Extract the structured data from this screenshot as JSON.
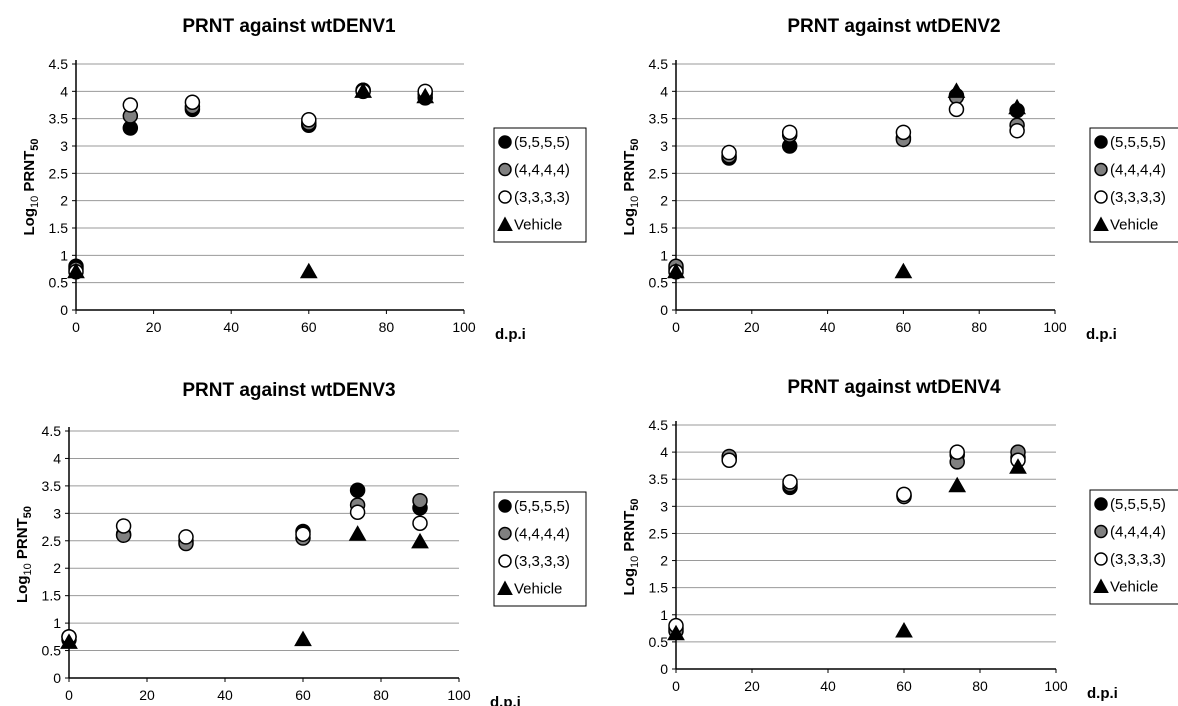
{
  "chart_data": [
    {
      "type": "scatter",
      "title": "PRNT against wtDENV1",
      "xlabel": "d.p.i",
      "ylabel_prefix": "Log",
      "ylabel_sub1": "10",
      "ylabel_mid": " PRNT",
      "ylabel_sub2": "50",
      "xlim": [
        0,
        100
      ],
      "ylim": [
        0,
        4.5
      ],
      "xticks": [
        "0",
        "20",
        "40",
        "60",
        "80",
        "100"
      ],
      "yticks": [
        "0",
        "0.5",
        "1",
        "1.5",
        "2",
        "2.5",
        "3",
        "3.5",
        "4",
        "4.5"
      ],
      "grid": "horizontal",
      "legend_position": "right",
      "series": [
        {
          "name": "(5,5,5,5)",
          "marker": "circle",
          "fill": "#000000",
          "points": [
            [
              0,
              0.8
            ],
            [
              14,
              3.33
            ],
            [
              30,
              3.67
            ],
            [
              60,
              3.38
            ],
            [
              74,
              4.02
            ],
            [
              90,
              3.88
            ]
          ]
        },
        {
          "name": "(4,4,4,4)",
          "marker": "circle",
          "fill": "#808080",
          "points": [
            [
              0,
              0.75
            ],
            [
              14,
              3.55
            ],
            [
              30,
              3.72
            ],
            [
              60,
              3.42
            ],
            [
              74,
              4.02
            ],
            [
              90,
              3.95
            ]
          ]
        },
        {
          "name": "(3,3,3,3)",
          "marker": "circle",
          "fill": "#ffffff",
          "points": [
            [
              0,
              0.7
            ],
            [
              14,
              3.75
            ],
            [
              30,
              3.8
            ],
            [
              60,
              3.48
            ],
            [
              74,
              4.0
            ],
            [
              90,
              4.0
            ]
          ]
        },
        {
          "name": "Vehicle",
          "marker": "triangle",
          "fill": "#000000",
          "points": [
            [
              0,
              0.7
            ],
            [
              60,
              0.7
            ],
            [
              74,
              4.0
            ],
            [
              90,
              3.9
            ]
          ]
        }
      ]
    },
    {
      "type": "scatter",
      "title": "PRNT against wtDENV2",
      "xlabel": "d.p.i",
      "ylabel_prefix": "Log",
      "ylabel_sub1": "10",
      "ylabel_mid": " PRNT",
      "ylabel_sub2": "50",
      "xlim": [
        0,
        100
      ],
      "ylim": [
        0,
        4.5
      ],
      "xticks": [
        "0",
        "20",
        "40",
        "60",
        "80",
        "100"
      ],
      "yticks": [
        "0",
        "0.5",
        "1",
        "1.5",
        "2",
        "2.5",
        "3",
        "3.5",
        "4",
        "4.5"
      ],
      "grid": "horizontal",
      "legend_position": "right",
      "series": [
        {
          "name": "(5,5,5,5)",
          "marker": "circle",
          "fill": "#000000",
          "points": [
            [
              0,
              0.75
            ],
            [
              14,
              2.78
            ],
            [
              30,
              3.0
            ],
            [
              60,
              3.15
            ],
            [
              74,
              3.92
            ],
            [
              90,
              3.65
            ]
          ]
        },
        {
          "name": "(4,4,4,4)",
          "marker": "circle",
          "fill": "#808080",
          "points": [
            [
              0,
              0.8
            ],
            [
              14,
              2.82
            ],
            [
              30,
              3.2
            ],
            [
              60,
              3.12
            ],
            [
              74,
              3.9
            ],
            [
              90,
              3.38
            ]
          ]
        },
        {
          "name": "(3,3,3,3)",
          "marker": "circle",
          "fill": "#ffffff",
          "points": [
            [
              0,
              0.7
            ],
            [
              14,
              2.88
            ],
            [
              30,
              3.25
            ],
            [
              60,
              3.25
            ],
            [
              74,
              3.67
            ],
            [
              90,
              3.28
            ]
          ]
        },
        {
          "name": "Vehicle",
          "marker": "triangle",
          "fill": "#000000",
          "points": [
            [
              0,
              0.7
            ],
            [
              60,
              0.7
            ],
            [
              74,
              4.0
            ],
            [
              90,
              3.7
            ]
          ]
        }
      ]
    },
    {
      "type": "scatter",
      "title": "PRNT against wtDENV3",
      "xlabel": "d.p.i",
      "ylabel_prefix": "Log",
      "ylabel_sub1": "10",
      "ylabel_mid": " PRNT",
      "ylabel_sub2": "50",
      "xlim": [
        0,
        100
      ],
      "ylim": [
        0,
        4.5
      ],
      "xticks": [
        "0",
        "20",
        "40",
        "60",
        "80",
        "100"
      ],
      "yticks": [
        "0",
        "0.5",
        "1",
        "1.5",
        "2",
        "2.5",
        "3",
        "3.5",
        "4",
        "4.5"
      ],
      "grid": "horizontal",
      "legend_position": "right",
      "series": [
        {
          "name": "(5,5,5,5)",
          "marker": "circle",
          "fill": "#000000",
          "points": [
            [
              0,
              0.7
            ],
            [
              14,
              2.62
            ],
            [
              30,
              2.5
            ],
            [
              60,
              2.67
            ],
            [
              74,
              3.42
            ],
            [
              90,
              3.1
            ]
          ]
        },
        {
          "name": "(4,4,4,4)",
          "marker": "circle",
          "fill": "#808080",
          "points": [
            [
              0,
              0.75
            ],
            [
              14,
              2.6
            ],
            [
              30,
              2.45
            ],
            [
              60,
              2.55
            ],
            [
              74,
              3.15
            ],
            [
              90,
              3.23
            ]
          ]
        },
        {
          "name": "(3,3,3,3)",
          "marker": "circle",
          "fill": "#ffffff",
          "points": [
            [
              0,
              0.75
            ],
            [
              14,
              2.77
            ],
            [
              30,
              2.57
            ],
            [
              60,
              2.62
            ],
            [
              74,
              3.02
            ],
            [
              90,
              2.82
            ]
          ]
        },
        {
          "name": "Vehicle",
          "marker": "triangle",
          "fill": "#000000",
          "points": [
            [
              0,
              0.65
            ],
            [
              60,
              0.7
            ],
            [
              74,
              2.62
            ],
            [
              90,
              2.48
            ]
          ]
        }
      ]
    },
    {
      "type": "scatter",
      "title": "PRNT against wtDENV4",
      "xlabel": "d.p.i",
      "ylabel_prefix": "Log",
      "ylabel_sub1": "10",
      "ylabel_mid": " PRNT",
      "ylabel_sub2": "50",
      "xlim": [
        0,
        100
      ],
      "ylim": [
        0,
        4.5
      ],
      "xticks": [
        "0",
        "20",
        "40",
        "60",
        "80",
        "100"
      ],
      "yticks": [
        "0",
        "0.5",
        "1",
        "1.5",
        "2",
        "2.5",
        "3",
        "3.5",
        "4",
        "4.5"
      ],
      "grid": "horizontal",
      "legend_position": "right",
      "series": [
        {
          "name": "(5,5,5,5)",
          "marker": "circle",
          "fill": "#000000",
          "points": [
            [
              0,
              0.75
            ],
            [
              14,
              3.88
            ],
            [
              30,
              3.35
            ],
            [
              60,
              3.2
            ],
            [
              74,
              3.95
            ],
            [
              90,
              3.9
            ]
          ]
        },
        {
          "name": "(4,4,4,4)",
          "marker": "circle",
          "fill": "#808080",
          "points": [
            [
              0,
              0.7
            ],
            [
              14,
              3.92
            ],
            [
              30,
              3.4
            ],
            [
              60,
              3.18
            ],
            [
              74,
              3.82
            ],
            [
              90,
              4.0
            ]
          ]
        },
        {
          "name": "(3,3,3,3)",
          "marker": "circle",
          "fill": "#ffffff",
          "points": [
            [
              0,
              0.8
            ],
            [
              14,
              3.85
            ],
            [
              30,
              3.45
            ],
            [
              60,
              3.22
            ],
            [
              74,
              4.0
            ],
            [
              90,
              3.85
            ]
          ]
        },
        {
          "name": "Vehicle",
          "marker": "triangle",
          "fill": "#000000",
          "points": [
            [
              0,
              0.65
            ],
            [
              60,
              0.7
            ],
            [
              74,
              3.38
            ],
            [
              90,
              3.72
            ]
          ]
        }
      ]
    }
  ]
}
